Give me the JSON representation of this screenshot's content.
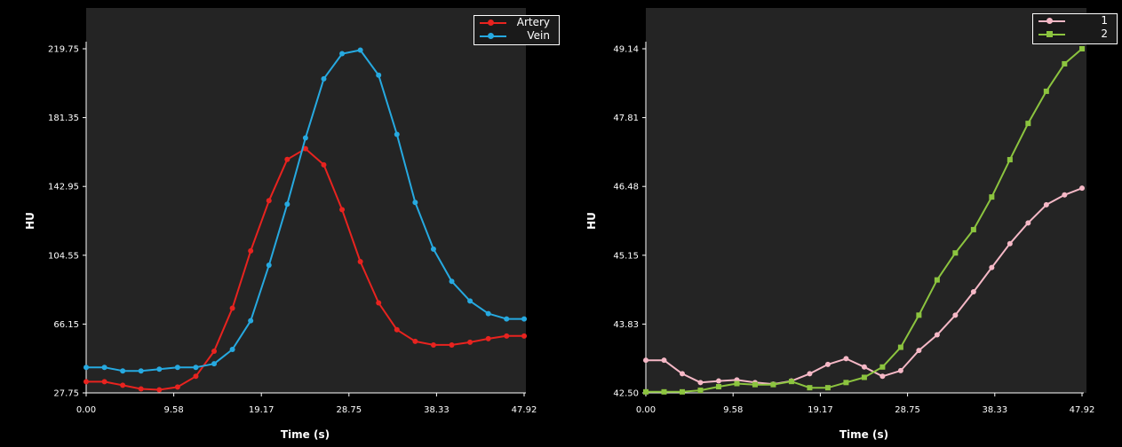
{
  "chart_data": [
    {
      "type": "line",
      "xlabel": "Time (s)",
      "ylabel": "HU",
      "xlim": [
        0,
        47.92
      ],
      "ylim": [
        27.75,
        219.75
      ],
      "xticks": [
        "0.00",
        "9.58",
        "19.17",
        "28.75",
        "38.33",
        "47.92"
      ],
      "yticks": [
        "27.75",
        "66.15",
        "104.55",
        "142.95",
        "181.35",
        "219.75"
      ],
      "legend_position": "top-right",
      "grid": false,
      "x": [
        0,
        2.0,
        4.0,
        6.0,
        8.0,
        10.0,
        12.0,
        14.0,
        16.0,
        18.0,
        20.0,
        22.0,
        24.0,
        26.0,
        28.0,
        30.0,
        32.0,
        34.0,
        36.0,
        38.0,
        40.0,
        42.0,
        44.0,
        46.0,
        47.92
      ],
      "series": [
        {
          "name": "Artery",
          "color": "#e8231f",
          "marker": "circle",
          "values": [
            34,
            34,
            32,
            30,
            29.5,
            31,
            37,
            51,
            75,
            107,
            135,
            158,
            164,
            155,
            130,
            101,
            78,
            63,
            56.5,
            54.5,
            54.5,
            56,
            58,
            59.5,
            59.5
          ]
        },
        {
          "name": "Vein",
          "color": "#26a9e0",
          "marker": "circle",
          "values": [
            42,
            42,
            40,
            40,
            41,
            42,
            42,
            44,
            52,
            68,
            99,
            133,
            170,
            203,
            217,
            219,
            205,
            172,
            134,
            108,
            90,
            79,
            72,
            69,
            69
          ]
        }
      ]
    },
    {
      "type": "line",
      "xlabel": "Time (s)",
      "ylabel": "HU",
      "xlim": [
        0,
        47.92
      ],
      "ylim": [
        42.5,
        49.14
      ],
      "xticks": [
        "0.00",
        "9.58",
        "19.17",
        "28.75",
        "38.33",
        "47.92"
      ],
      "yticks": [
        "42.50",
        "43.83",
        "45.15",
        "46.48",
        "47.81",
        "49.14"
      ],
      "legend_position": "top-right",
      "grid": false,
      "x": [
        0,
        2.0,
        4.0,
        6.0,
        8.0,
        10.0,
        12.0,
        14.0,
        16.0,
        18.0,
        20.0,
        22.0,
        24.0,
        26.0,
        28.0,
        30.0,
        32.0,
        34.0,
        36.0,
        38.0,
        40.0,
        42.0,
        44.0,
        46.0,
        47.92
      ],
      "series": [
        {
          "name": "1",
          "color": "#f5b8c6",
          "marker": "circle",
          "values": [
            43.13,
            43.13,
            42.87,
            42.7,
            42.73,
            42.75,
            42.7,
            42.67,
            42.73,
            42.87,
            43.05,
            43.16,
            43.0,
            42.82,
            42.93,
            43.32,
            43.62,
            44.0,
            44.45,
            44.92,
            45.38,
            45.78,
            46.13,
            46.32,
            46.45
          ]
        },
        {
          "name": "2",
          "color": "#8cc43f",
          "marker": "square",
          "values": [
            42.52,
            42.52,
            42.52,
            42.55,
            42.62,
            42.68,
            42.66,
            42.66,
            42.72,
            42.6,
            42.6,
            42.7,
            42.8,
            43.0,
            43.38,
            44.0,
            44.68,
            45.2,
            45.65,
            46.28,
            47.0,
            47.7,
            48.32,
            48.85,
            49.14
          ]
        }
      ]
    }
  ]
}
